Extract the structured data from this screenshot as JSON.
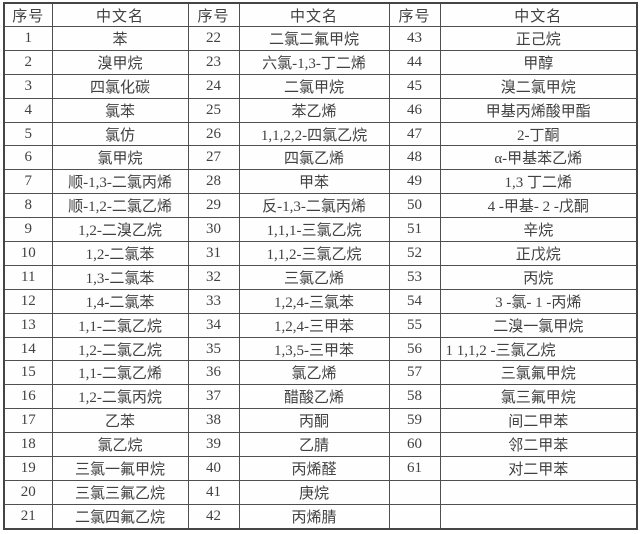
{
  "colors": {
    "background": "#ffffff",
    "text": "#414141",
    "border": "#4f4f4f"
  },
  "table": {
    "headers": [
      "序号",
      "中文名",
      "序号",
      "中文名",
      "序号",
      "中文名"
    ],
    "rows": [
      [
        "1",
        "苯",
        "22",
        "二氯二氟甲烷",
        "43",
        "正己烷"
      ],
      [
        "2",
        "溴甲烷",
        "23",
        "六氯-1,3-丁二烯",
        "44",
        "甲醇"
      ],
      [
        "3",
        "四氯化碳",
        "24",
        "二氯甲烷",
        "45",
        "溴二氯甲烷"
      ],
      [
        "4",
        "氯苯",
        "25",
        "苯乙烯",
        "46",
        "甲基丙烯酸甲酯"
      ],
      [
        "5",
        "氯仿",
        "26",
        "1,1,2,2-四氯乙烷",
        "47",
        "2-丁酮"
      ],
      [
        "6",
        "氯甲烷",
        "27",
        "四氯乙烯",
        "48",
        "α-甲基苯乙烯"
      ],
      [
        "7",
        "顺-1,3-二氯丙烯",
        "28",
        "甲苯",
        "49",
        "1,3 丁二烯"
      ],
      [
        "8",
        "顺-1,2-二氯乙烯",
        "29",
        "反-1,3-二氯丙烯",
        "50",
        "4 -甲基- 2 -戊酮"
      ],
      [
        "9",
        "1,2-二溴乙烷",
        "30",
        "1,1,1-三氯乙烷",
        "51",
        "辛烷"
      ],
      [
        "10",
        "1,2-二氯苯",
        "31",
        "1,1,2-三氯乙烷",
        "52",
        "正戊烷"
      ],
      [
        "11",
        "1,3-二氯苯",
        "32",
        "三氯乙烯",
        "53",
        "丙烷"
      ],
      [
        "12",
        "1,4-二氯苯",
        "33",
        "1,2,4-三氯苯",
        "54",
        "3 -氯- 1 -丙烯"
      ],
      [
        "13",
        "1,1-二氯乙烷",
        "34",
        "1,2,4-三甲苯",
        "55",
        "二溴一氯甲烷"
      ],
      [
        "14",
        "1,2-二氯乙烷",
        "35",
        "1,3,5-三甲苯",
        "56",
        "1 1,1,2 -三氯乙烷"
      ],
      [
        "15",
        "1,1-二氯乙烯",
        "36",
        "氯乙烯",
        "57",
        "三氯氟甲烷"
      ],
      [
        "16",
        "1,2-二氯丙烷",
        "37",
        "醋酸乙烯",
        "58",
        "氯三氟甲烷"
      ],
      [
        "17",
        "乙苯",
        "38",
        "丙酮",
        "59",
        "间二甲苯"
      ],
      [
        "18",
        "氯乙烷",
        "39",
        "乙腈",
        "60",
        "邻二甲苯"
      ],
      [
        "19",
        "三氯一氟甲烷",
        "40",
        "丙烯醛",
        "61",
        "对二甲苯"
      ],
      [
        "20",
        "三氯三氟乙烷",
        "41",
        "庚烷",
        "",
        ""
      ],
      [
        "21",
        "二氯四氟乙烷",
        "42",
        "丙烯腈",
        "",
        ""
      ]
    ],
    "left_aligned_cells": [
      [
        13,
        5
      ]
    ]
  }
}
